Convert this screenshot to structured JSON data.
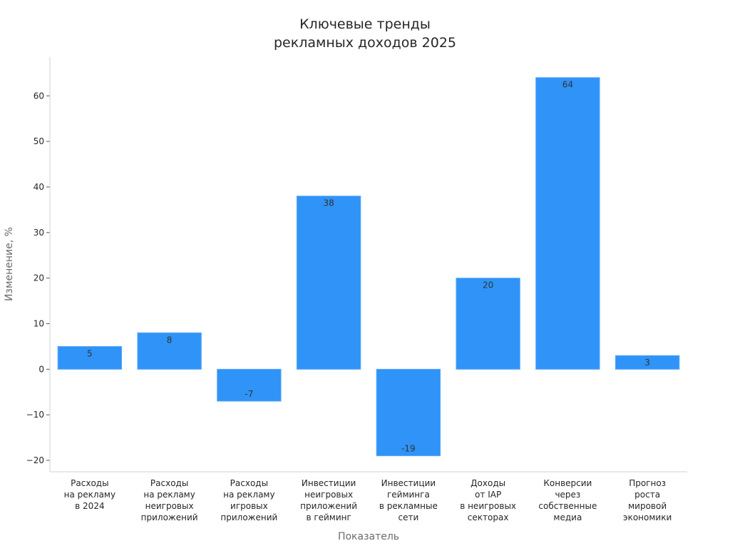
{
  "chart_data": {
    "type": "bar",
    "title_lines": [
      "Ключевые тренды",
      "рекламных доходов 2025"
    ],
    "xlabel": "Показатель",
    "ylabel": "Изменение, %",
    "ylim": [
      -22.5,
      68.5
    ],
    "yticks": [
      -20,
      -10,
      0,
      10,
      20,
      30,
      40,
      50,
      60
    ],
    "ytick_labels": [
      "−20",
      "−10",
      "0",
      "10",
      "20",
      "30",
      "40",
      "50",
      "60"
    ],
    "categories": [
      [
        "Расходы",
        "на рекламу",
        "в 2024"
      ],
      [
        "Расходы",
        "на рекламу",
        "неигровых",
        "приложений"
      ],
      [
        "Расходы",
        "на рекламу",
        "игровых",
        "приложений"
      ],
      [
        "Инвестиции",
        "неигровых",
        "приложений",
        "в гейминг"
      ],
      [
        "Инвестиции",
        "гейминга",
        "в рекламные",
        "сети"
      ],
      [
        "Доходы",
        "от IAP",
        "в неигровых",
        "секторах"
      ],
      [
        "Конверсии",
        "через",
        "собственные",
        "медиа"
      ],
      [
        "Прогноз",
        "роста",
        "мировой",
        "экономики"
      ]
    ],
    "values": [
      5,
      8,
      -7,
      38,
      -19,
      20,
      64,
      3
    ],
    "value_labels": [
      "5",
      "8",
      "-7",
      "38",
      "-19",
      "20",
      "64",
      "3"
    ],
    "bar_color": "#2f93f7",
    "bar_edge_color": "#5aa9f9",
    "grid": false,
    "legend": "none"
  }
}
